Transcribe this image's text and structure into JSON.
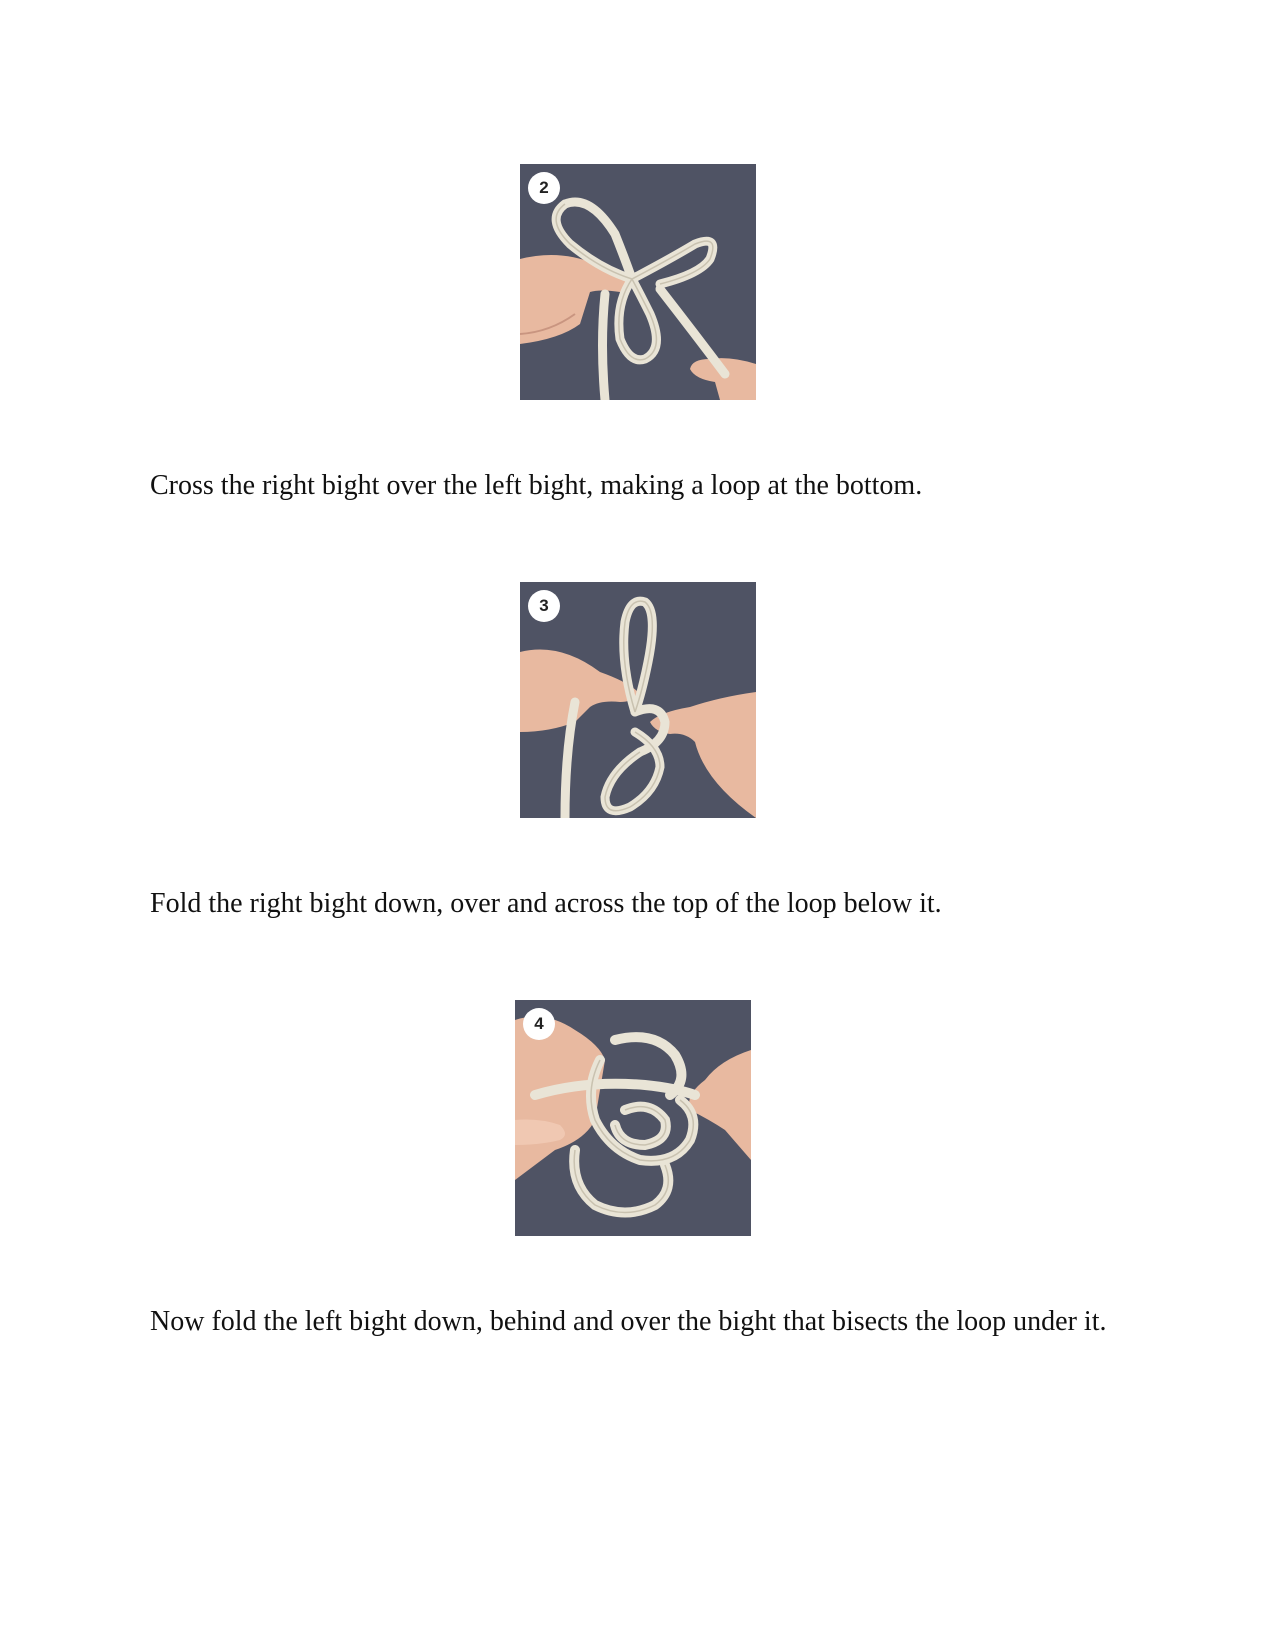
{
  "steps": [
    {
      "number": "2",
      "caption": "Cross the right bight over the left bight, making a loop at the bottom."
    },
    {
      "number": "3",
      "caption": "Fold the right bight down, over and across the top of the loop below it."
    },
    {
      "number": "4",
      "caption": "Now fold the left bight down, behind and over the bight that bisects the loop under it."
    }
  ],
  "colors": {
    "photo_background": "#4f5364",
    "rope": "#e9e4d6",
    "skin": "#e8b9a0"
  }
}
